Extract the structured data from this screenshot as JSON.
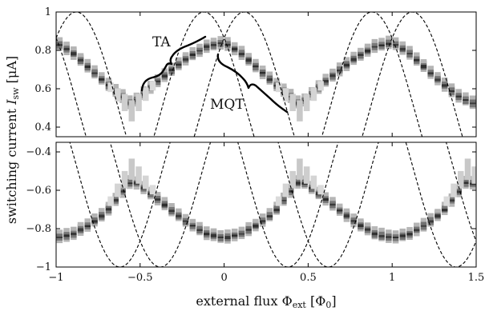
{
  "chart_data": [
    {
      "type": "heatmap",
      "panel": "top",
      "xlim": [
        -1,
        1.5
      ],
      "ylim": [
        0.35,
        1.0
      ],
      "ytick_labels": [
        "1",
        "0.8",
        "0.6",
        "0.4"
      ],
      "yticks": [
        1.0,
        0.8,
        0.6,
        0.4
      ],
      "x_ticks_labeled": false,
      "envelope": {
        "center": 0.5,
        "amplitude": 0.5,
        "phase_offset": 0.12,
        "period": 1,
        "style": "dashed"
      },
      "ridge": [
        [
          -1.0,
          0.845
        ],
        [
          -0.9,
          0.79
        ],
        [
          -0.8,
          0.71
        ],
        [
          -0.7,
          0.63
        ],
        [
          -0.6,
          0.56
        ],
        [
          -0.55,
          0.52
        ],
        [
          -0.5,
          0.56
        ],
        [
          -0.4,
          0.64
        ],
        [
          -0.3,
          0.71
        ],
        [
          -0.2,
          0.775
        ],
        [
          -0.1,
          0.825
        ],
        [
          0.0,
          0.845
        ],
        [
          0.1,
          0.79
        ],
        [
          0.2,
          0.71
        ],
        [
          0.3,
          0.63
        ],
        [
          0.4,
          0.56
        ],
        [
          0.45,
          0.52
        ],
        [
          0.5,
          0.56
        ],
        [
          0.6,
          0.64
        ],
        [
          0.7,
          0.71
        ],
        [
          0.8,
          0.775
        ],
        [
          0.9,
          0.825
        ],
        [
          1.0,
          0.845
        ],
        [
          1.1,
          0.79
        ],
        [
          1.2,
          0.71
        ],
        [
          1.3,
          0.63
        ],
        [
          1.4,
          0.56
        ],
        [
          1.5,
          0.52
        ]
      ],
      "annotations": [
        {
          "text": "TA",
          "x": -0.36,
          "y": 0.865
        },
        {
          "text": "MQT",
          "x": 0.2,
          "y": 0.585
        }
      ]
    },
    {
      "type": "heatmap",
      "panel": "bottom",
      "xlim": [
        -1,
        1.5
      ],
      "ylim": [
        -1.0,
        -0.35
      ],
      "ytick_labels": [
        "-0.4",
        "-0.6",
        "-0.8",
        "-1"
      ],
      "yticks": [
        -0.4,
        -0.6,
        -0.8,
        -1.0
      ],
      "xticks": [
        -1,
        -0.5,
        0,
        0.5,
        1,
        1.5
      ],
      "xtick_labels": [
        "−1",
        "−0.5",
        "0",
        "0.5",
        "1",
        "1.5"
      ],
      "envelope": {
        "center": -0.5,
        "amplitude": 0.5,
        "phase_offset": 0.12,
        "period": 1,
        "style": "dashed"
      },
      "ridge": [
        [
          -1.0,
          -0.845
        ],
        [
          -0.9,
          -0.825
        ],
        [
          -0.8,
          -0.775
        ],
        [
          -0.7,
          -0.71
        ],
        [
          -0.62,
          -0.62
        ],
        [
          -0.55,
          -0.545
        ],
        [
          -0.5,
          -0.57
        ],
        [
          -0.4,
          -0.64
        ],
        [
          -0.3,
          -0.71
        ],
        [
          -0.2,
          -0.775
        ],
        [
          -0.1,
          -0.825
        ],
        [
          0.0,
          -0.845
        ],
        [
          0.1,
          -0.825
        ],
        [
          0.2,
          -0.775
        ],
        [
          0.3,
          -0.71
        ],
        [
          0.38,
          -0.62
        ],
        [
          0.45,
          -0.545
        ],
        [
          0.5,
          -0.57
        ],
        [
          0.6,
          -0.64
        ],
        [
          0.7,
          -0.71
        ],
        [
          0.8,
          -0.775
        ],
        [
          0.9,
          -0.825
        ],
        [
          1.0,
          -0.845
        ],
        [
          1.1,
          -0.825
        ],
        [
          1.2,
          -0.775
        ],
        [
          1.3,
          -0.71
        ],
        [
          1.38,
          -0.62
        ],
        [
          1.45,
          -0.545
        ],
        [
          1.5,
          -0.57
        ]
      ]
    }
  ],
  "axes": {
    "ylabel": "switching current ",
    "ylabel_var": "I",
    "ylabel_sub": "sw",
    "ylabel_unit": " [μA]",
    "xlabel": "external flux ",
    "xlabel_var": "Φ",
    "xlabel_sub": "ext",
    "xlabel_unit": " [Φ",
    "xlabel_unit_sub": "0",
    "xlabel_unit_close": "]"
  },
  "colors": {
    "frame": "#000000",
    "ink_dark": "#1a1a1a",
    "ink_light": "#d8d8d8"
  }
}
